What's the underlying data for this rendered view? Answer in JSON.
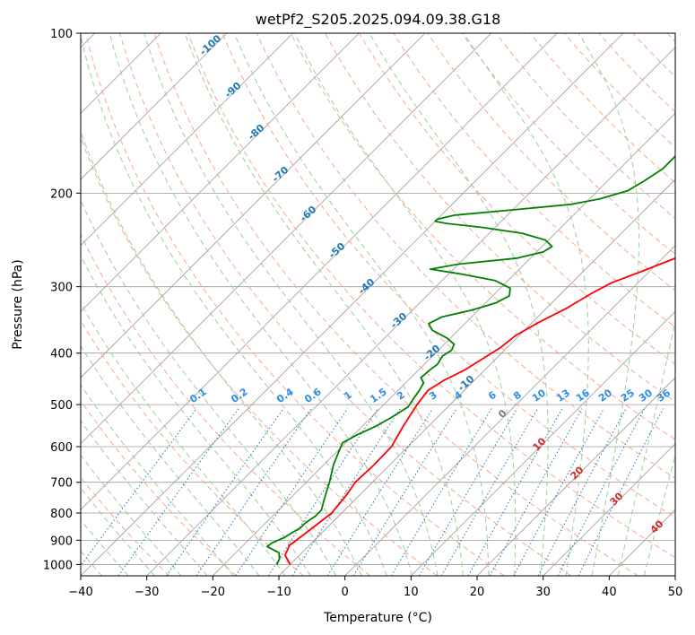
{
  "chart_data": {
    "type": "line",
    "title": "wetPf2_S205.2025.094.09.38.G18",
    "xlabel": "Temperature (°C)",
    "ylabel": "Pressure (hPa)",
    "xlim": [
      -40,
      50
    ],
    "ylim": [
      1050,
      100
    ],
    "y_scale": "log",
    "grid": true,
    "x_ticks": [
      -40,
      -30,
      -20,
      -10,
      0,
      10,
      20,
      30,
      40,
      50
    ],
    "y_ticks": [
      100,
      200,
      300,
      400,
      500,
      600,
      700,
      800,
      900,
      1000
    ],
    "series": [
      {
        "role": "temperature",
        "color": "#ff0000",
        "points": [
          [
            -10,
            1000
          ],
          [
            -12.2,
            960
          ],
          [
            -13,
            920
          ],
          [
            -12.5,
            880
          ],
          [
            -12,
            840
          ],
          [
            -11.5,
            800
          ],
          [
            -12,
            740
          ],
          [
            -12.6,
            700
          ],
          [
            -12.4,
            650
          ],
          [
            -12.5,
            600
          ],
          [
            -13.8,
            550
          ],
          [
            -15,
            500
          ],
          [
            -15.5,
            470
          ],
          [
            -14.6,
            450
          ],
          [
            -13,
            430
          ],
          [
            -12,
            410
          ],
          [
            -11,
            390
          ],
          [
            -10.5,
            370
          ],
          [
            -9,
            350
          ],
          [
            -7,
            330
          ],
          [
            -5.5,
            310
          ],
          [
            -4,
            295
          ],
          [
            -1,
            280
          ],
          [
            3,
            260
          ],
          [
            6,
            245
          ],
          [
            9,
            235
          ],
          [
            11.5,
            225
          ],
          [
            13.5,
            210
          ],
          [
            16,
            200
          ],
          [
            20,
            185
          ],
          [
            24,
            170
          ],
          [
            27,
            160
          ],
          [
            32,
            140
          ],
          [
            35,
            130
          ],
          [
            37,
            124
          ],
          [
            39,
            115
          ],
          [
            41,
            106
          ],
          [
            42,
            100
          ]
        ]
      },
      {
        "role": "dewpoint",
        "color": "#008000",
        "points": [
          [
            -12,
            1000
          ],
          [
            -12.5,
            975
          ],
          [
            -13.5,
            950
          ],
          [
            -16.2,
            925
          ],
          [
            -16,
            910
          ],
          [
            -15,
            890
          ],
          [
            -14.5,
            870
          ],
          [
            -14,
            855
          ],
          [
            -14,
            835
          ],
          [
            -13.5,
            810
          ],
          [
            -13.5,
            790
          ],
          [
            -14.5,
            760
          ],
          [
            -15.5,
            730
          ],
          [
            -16.5,
            700
          ],
          [
            -18.5,
            650
          ],
          [
            -19.5,
            620
          ],
          [
            -20.5,
            590
          ],
          [
            -19.5,
            570
          ],
          [
            -18,
            550
          ],
          [
            -17,
            530
          ],
          [
            -16,
            505
          ],
          [
            -16.5,
            485
          ],
          [
            -16.8,
            470
          ],
          [
            -17.3,
            455
          ],
          [
            -18.5,
            445
          ],
          [
            -18.3,
            430
          ],
          [
            -18,
            420
          ],
          [
            -18.5,
            405
          ],
          [
            -18,
            395
          ],
          [
            -18.5,
            385
          ],
          [
            -20.5,
            375
          ],
          [
            -24,
            362
          ],
          [
            -25.5,
            352
          ],
          [
            -24.5,
            342
          ],
          [
            -21,
            332
          ],
          [
            -18.5,
            322
          ],
          [
            -17.5,
            312
          ],
          [
            -18.5,
            302
          ],
          [
            -22,
            292
          ],
          [
            -28,
            284
          ],
          [
            -33.5,
            278
          ],
          [
            -30,
            272
          ],
          [
            -22,
            265
          ],
          [
            -19,
            258
          ],
          [
            -18.5,
            252
          ],
          [
            -20.5,
            245
          ],
          [
            -25,
            238
          ],
          [
            -32,
            232
          ],
          [
            -38,
            228
          ],
          [
            -40,
            226
          ],
          [
            -40,
            224
          ],
          [
            -38,
            220
          ],
          [
            -30,
            215
          ],
          [
            -22,
            210
          ],
          [
            -18.5,
            205
          ],
          [
            -15.5,
            198
          ],
          [
            -14.5,
            190
          ],
          [
            -13.5,
            180
          ],
          [
            -13.5,
            170
          ],
          [
            -14,
            165
          ],
          [
            -13.8,
            155
          ],
          [
            -12.5,
            150
          ],
          [
            -11,
            145
          ],
          [
            -10.2,
            138
          ],
          [
            -9.4,
            132
          ],
          [
            -9.1,
            126
          ],
          [
            -8.5,
            123
          ],
          [
            -7.5,
            119
          ],
          [
            -6,
            114
          ],
          [
            -5.2,
            110
          ],
          [
            -4.2,
            104
          ],
          [
            -3.5,
            100
          ]
        ]
      }
    ],
    "dry_adiabat_labels": [
      -100,
      -90,
      -80,
      -70,
      -60,
      -50,
      -40,
      -30,
      -20,
      -10
    ],
    "mixing_ratio_labels": [
      "0.1",
      "0.2",
      "0.4",
      "0.6",
      "1",
      "1.5",
      "2",
      "3",
      "4",
      "6",
      "8",
      "10",
      "13",
      "16",
      "20",
      "25",
      "30",
      "36"
    ],
    "moist_adiabat_labels": [
      "0",
      "10",
      "20",
      "30",
      "40"
    ],
    "colors": {
      "temperature": "#ff0000",
      "dewpoint": "#008000",
      "isotherm": "#9a9a9a",
      "dry_adiabat": "#f7a88a",
      "moist_adiabat": "#9ccc9c",
      "mixing_ratio": "#1f77b4",
      "dry_label": "#1f77b4",
      "mixing_label": "#2a8ee8",
      "moist_label": "#d62728",
      "moist_label_zero": "#777777"
    }
  }
}
